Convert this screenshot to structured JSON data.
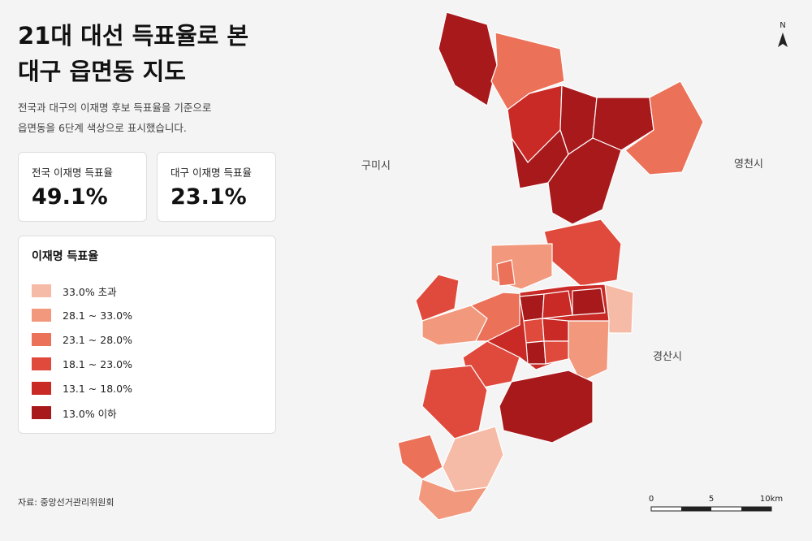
{
  "header": {
    "title": [
      "21대 대선 득표율로 본",
      "대구 읍면동 지도"
    ],
    "description": [
      "전국과 대구의 이재명 후보 득표율을 기준으로",
      "읍면동을 6단계 색상으로 표시했습니다."
    ]
  },
  "stats": [
    {
      "label": "전국 이재명 득표율",
      "value": "49.1%"
    },
    {
      "label": "대구 이재명 득표율",
      "value": "23.1%"
    }
  ],
  "legend": {
    "title": "이재명 득표율",
    "items": [
      {
        "label": "33.0% 초과",
        "color": "#f6bba6"
      },
      {
        "label": "28.1 ~ 33.0%",
        "color": "#f2987d"
      },
      {
        "label": "23.1 ~ 28.0%",
        "color": "#ec7159"
      },
      {
        "label": "18.1 ~ 23.0%",
        "color": "#e04a3c"
      },
      {
        "label": "13.1 ~ 18.0%",
        "color": "#c92a26"
      },
      {
        "label": "13.0% 이하",
        "color": "#a8191c"
      }
    ]
  },
  "map": {
    "labels": [
      "구미시",
      "영천시",
      "경산시"
    ],
    "north": "N",
    "scale": [
      "0",
      "5",
      "10km"
    ]
  },
  "source": "자료: 중앙선거관리위원회"
}
